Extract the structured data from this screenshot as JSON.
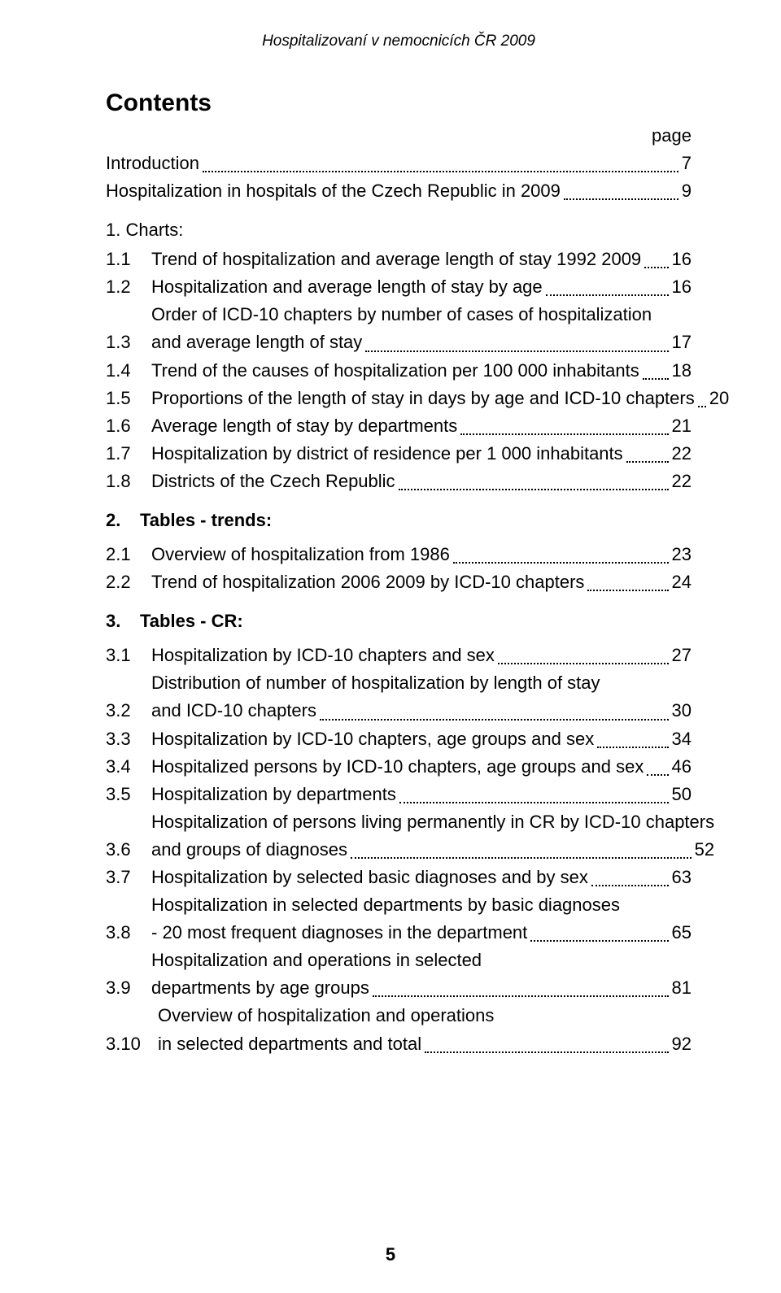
{
  "running_head": "Hospitalizovaní v nemocnicích ČR 2009",
  "title": "Contents",
  "page_label": "page",
  "footer_page": "5",
  "intro": [
    {
      "num": "",
      "lines": [
        "Introduction"
      ],
      "page": "7"
    },
    {
      "num": "",
      "lines": [
        "Hospitalization in hospitals of the Czech Republic in 2009"
      ],
      "page": "9"
    }
  ],
  "sec1_head": "1.  Charts:",
  "sec1": [
    {
      "num": "1.1",
      "lines": [
        "Trend of hospitalization and average length of stay 1992 2009"
      ],
      "page": "16"
    },
    {
      "num": "1.2",
      "lines": [
        "Hospitalization and average length of stay by age"
      ],
      "page": "16"
    },
    {
      "num": "1.3",
      "lines": [
        "Order of ICD-10 chapters by number of cases of hospitalization",
        "and average length of stay"
      ],
      "page": "17"
    },
    {
      "num": "1.4",
      "lines": [
        "Trend of the causes of hospitalization per 100 000 inhabitants"
      ],
      "page": "18"
    },
    {
      "num": "1.5",
      "lines": [
        "Proportions of the length of stay in days by age and ICD-10 chapters"
      ],
      "page": "20"
    },
    {
      "num": "1.6",
      "lines": [
        "Average length of stay by departments"
      ],
      "page": "21"
    },
    {
      "num": "1.7",
      "lines": [
        "Hospitalization by district of residence per 1 000 inhabitants"
      ],
      "page": "22"
    },
    {
      "num": "1.8",
      "lines": [
        "Districts of the Czech Republic"
      ],
      "page": "22"
    }
  ],
  "sec2_head_num": "2.",
  "sec2_head_txt": "Tables - trends:",
  "sec2": [
    {
      "num": "2.1",
      "lines": [
        "Overview of hospitalization from 1986"
      ],
      "page": "23"
    },
    {
      "num": "2.2",
      "lines": [
        "Trend of hospitalization 2006 2009 by ICD-10 chapters"
      ],
      "page": "24"
    }
  ],
  "sec3_head_num": "3.",
  "sec3_head_txt": "Tables - CR:",
  "sec3": [
    {
      "num": "3.1",
      "lines": [
        "Hospitalization by ICD-10 chapters and sex"
      ],
      "page": "27"
    },
    {
      "num": "3.2",
      "lines": [
        "Distribution of number of hospitalization by length of stay",
        "and ICD-10 chapters"
      ],
      "page": "30"
    },
    {
      "num": "3.3",
      "lines": [
        "Hospitalization by ICD-10 chapters, age groups and sex"
      ],
      "page": "34"
    },
    {
      "num": "3.4",
      "lines": [
        "Hospitalized persons by ICD-10 chapters, age groups and sex"
      ],
      "page": "46"
    },
    {
      "num": "3.5",
      "lines": [
        "Hospitalization by departments"
      ],
      "page": "50"
    },
    {
      "num": "3.6",
      "lines": [
        "Hospitalization of persons living permanently in CR by ICD-10 chapters",
        "and groups of diagnoses"
      ],
      "page": "52"
    },
    {
      "num": "3.7",
      "lines": [
        "Hospitalization by selected basic diagnoses and by sex"
      ],
      "page": "63"
    },
    {
      "num": "3.8",
      "lines": [
        "Hospitalization in selected departments by basic diagnoses",
        "- 20 most frequent diagnoses in the department"
      ],
      "page": "65"
    },
    {
      "num": "3.9",
      "lines": [
        "Hospitalization and operations in selected",
        "departments by age groups"
      ],
      "page": "81"
    },
    {
      "num": "3.10",
      "lines": [
        "Overview of hospitalization and operations",
        "in selected departments and total"
      ],
      "page": "92"
    }
  ]
}
